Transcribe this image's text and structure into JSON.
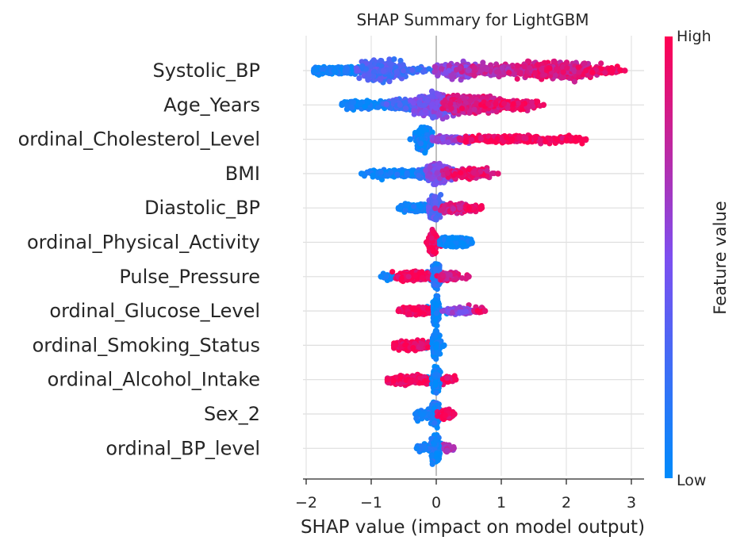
{
  "chart_data": {
    "type": "scatter",
    "subtype": "shap-beeswarm",
    "title": "SHAP Summary for LightGBM",
    "xlabel": "SHAP value (impact on model output)",
    "xlim": [
      -2.05,
      3.15
    ],
    "xticks": [
      -2,
      -1,
      0,
      1,
      2,
      3
    ],
    "xtick_labels": [
      "−2",
      "−1",
      "0",
      "1",
      "2",
      "3"
    ],
    "grid": true,
    "colorbar": {
      "label": "Feature value",
      "high_label": "High",
      "low_label": "Low",
      "low_color": "#008bfb",
      "high_color": "#ff0052"
    },
    "features": [
      {
        "name": "Systolic_BP",
        "min": -1.88,
        "max": 2.9,
        "clusters": [
          {
            "x": -1.55,
            "w": 0.35,
            "h": 0.25,
            "v": 0.05,
            "n": 220
          },
          {
            "x": -0.85,
            "w": 0.3,
            "h": 0.65,
            "v": 0.3,
            "n": 380
          },
          {
            "x": -0.45,
            "w": 0.3,
            "h": 0.15,
            "v": 0.25,
            "n": 60
          },
          {
            "x": 0.35,
            "w": 0.3,
            "h": 0.45,
            "v": 0.6,
            "n": 260
          },
          {
            "x": 1.0,
            "w": 0.55,
            "h": 0.35,
            "v": 0.75,
            "n": 300
          },
          {
            "x": 1.85,
            "w": 0.55,
            "h": 0.55,
            "v": 0.85,
            "n": 380
          },
          {
            "x": 2.6,
            "w": 0.25,
            "h": 0.2,
            "v": 0.95,
            "n": 80
          }
        ]
      },
      {
        "name": "Age_Years",
        "min": -1.45,
        "max": 1.65,
        "clusters": [
          {
            "x": -1.05,
            "w": 0.4,
            "h": 0.25,
            "v": 0.05,
            "n": 200
          },
          {
            "x": -0.45,
            "w": 0.35,
            "h": 0.3,
            "v": 0.25,
            "n": 200
          },
          {
            "x": 0.0,
            "w": 0.3,
            "h": 0.75,
            "v": 0.5,
            "n": 420
          },
          {
            "x": 0.55,
            "w": 0.4,
            "h": 0.55,
            "v": 0.85,
            "n": 380
          },
          {
            "x": 1.2,
            "w": 0.4,
            "h": 0.3,
            "v": 0.95,
            "n": 160
          }
        ]
      },
      {
        "name": "ordinal_Cholesterol_Level",
        "min": -0.4,
        "max": 2.3,
        "clusters": [
          {
            "x": -0.2,
            "w": 0.1,
            "h": 0.7,
            "v": 0.05,
            "n": 420
          },
          {
            "x": 0.25,
            "w": 0.3,
            "h": 0.2,
            "v": 0.55,
            "n": 150
          },
          {
            "x": 1.05,
            "w": 0.6,
            "h": 0.22,
            "v": 0.97,
            "n": 250
          },
          {
            "x": 2.05,
            "w": 0.25,
            "h": 0.15,
            "v": 0.98,
            "n": 70
          }
        ]
      },
      {
        "name": "BMI",
        "min": -1.15,
        "max": 0.95,
        "clusters": [
          {
            "x": -0.55,
            "w": 0.45,
            "h": 0.2,
            "v": 0.05,
            "n": 260
          },
          {
            "x": -0.1,
            "w": 0.2,
            "h": 0.35,
            "v": 0.2,
            "n": 200
          },
          {
            "x": 0.05,
            "w": 0.15,
            "h": 0.65,
            "v": 0.5,
            "n": 300
          },
          {
            "x": 0.45,
            "w": 0.3,
            "h": 0.3,
            "v": 0.9,
            "n": 200
          }
        ]
      },
      {
        "name": "Diastolic_BP",
        "min": -0.58,
        "max": 0.7,
        "clusters": [
          {
            "x": -0.3,
            "w": 0.22,
            "h": 0.25,
            "v": 0.05,
            "n": 180
          },
          {
            "x": -0.02,
            "w": 0.08,
            "h": 0.75,
            "v": 0.35,
            "n": 260
          },
          {
            "x": 0.3,
            "w": 0.2,
            "h": 0.3,
            "v": 0.85,
            "n": 180
          },
          {
            "x": 0.55,
            "w": 0.12,
            "h": 0.15,
            "v": 0.97,
            "n": 50
          }
        ]
      },
      {
        "name": "ordinal_Physical_Activity",
        "min": -0.15,
        "max": 0.55,
        "clusters": [
          {
            "x": -0.05,
            "w": 0.05,
            "h": 0.7,
            "v": 0.97,
            "n": 320
          },
          {
            "x": 0.28,
            "w": 0.2,
            "h": 0.3,
            "v": 0.03,
            "n": 200
          }
        ]
      },
      {
        "name": "Pulse_Pressure",
        "min": -0.85,
        "max": 0.5,
        "clusters": [
          {
            "x": -0.75,
            "w": 0.08,
            "h": 0.15,
            "v": 0.05,
            "n": 40
          },
          {
            "x": -0.35,
            "w": 0.25,
            "h": 0.3,
            "v": 0.97,
            "n": 220
          },
          {
            "x": 0.0,
            "w": 0.05,
            "h": 0.75,
            "v": 0.15,
            "n": 280
          },
          {
            "x": 0.2,
            "w": 0.15,
            "h": 0.25,
            "v": 0.85,
            "n": 120
          }
        ]
      },
      {
        "name": "ordinal_Glucose_Level",
        "min": -0.58,
        "max": 0.75,
        "clusters": [
          {
            "x": -0.3,
            "w": 0.25,
            "h": 0.25,
            "v": 0.97,
            "n": 230
          },
          {
            "x": 0.0,
            "w": 0.04,
            "h": 0.8,
            "v": 0.03,
            "n": 300
          },
          {
            "x": 0.35,
            "w": 0.2,
            "h": 0.2,
            "v": 0.55,
            "n": 150
          },
          {
            "x": 0.65,
            "w": 0.08,
            "h": 0.1,
            "v": 0.9,
            "n": 30
          }
        ]
      },
      {
        "name": "ordinal_Smoking_Status",
        "min": -0.65,
        "max": 0.12,
        "clusters": [
          {
            "x": -0.35,
            "w": 0.28,
            "h": 0.25,
            "v": 0.97,
            "n": 260
          },
          {
            "x": 0.0,
            "w": 0.05,
            "h": 0.8,
            "v": 0.03,
            "n": 300
          }
        ]
      },
      {
        "name": "ordinal_Alcohol_Intake",
        "min": -0.75,
        "max": 0.3,
        "clusters": [
          {
            "x": -0.4,
            "w": 0.32,
            "h": 0.25,
            "v": 0.97,
            "n": 260
          },
          {
            "x": 0.0,
            "w": 0.05,
            "h": 0.8,
            "v": 0.03,
            "n": 300
          },
          {
            "x": 0.2,
            "w": 0.08,
            "h": 0.15,
            "v": 0.97,
            "n": 40
          }
        ]
      },
      {
        "name": "Sex_2",
        "min": -0.32,
        "max": 0.28,
        "clusters": [
          {
            "x": -0.02,
            "w": 0.06,
            "h": 0.8,
            "v": 0.08,
            "n": 280
          },
          {
            "x": -0.18,
            "w": 0.1,
            "h": 0.15,
            "v": 0.1,
            "n": 60
          },
          {
            "x": 0.15,
            "w": 0.1,
            "h": 0.3,
            "v": 0.95,
            "n": 130
          }
        ]
      },
      {
        "name": "ordinal_BP_level",
        "min": -0.3,
        "max": 0.27,
        "clusters": [
          {
            "x": -0.02,
            "w": 0.05,
            "h": 0.85,
            "v": 0.06,
            "n": 320
          },
          {
            "x": -0.18,
            "w": 0.1,
            "h": 0.15,
            "v": 0.1,
            "n": 50
          },
          {
            "x": 0.18,
            "w": 0.07,
            "h": 0.2,
            "v": 0.7,
            "n": 60
          }
        ]
      }
    ]
  }
}
